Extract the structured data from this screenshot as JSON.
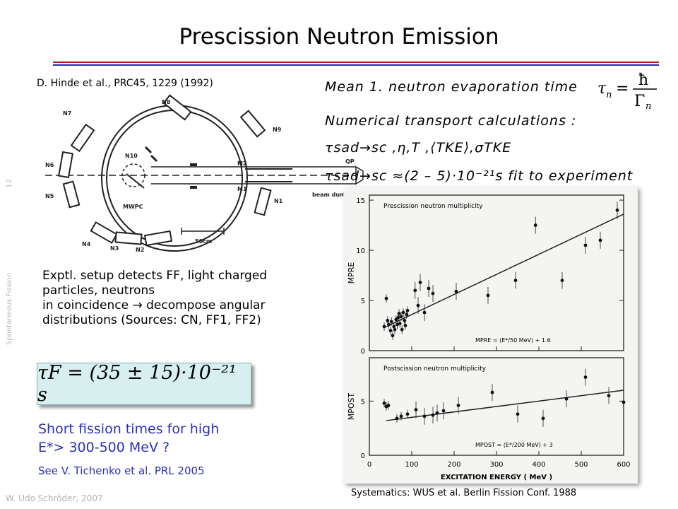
{
  "slide": {
    "title": "Prescission Neutron Emission",
    "page_number": "12",
    "side_label": "Spontaneous Fission",
    "author": "W. Udo Schröder, 2007"
  },
  "left": {
    "citation": "D. Hinde et al., PRC45, 1229 (1992)",
    "setup_labels": [
      "N8",
      "N7",
      "N9",
      "N6",
      "N10",
      "M2",
      "M1",
      "N1",
      "N5",
      "MWPC",
      "N4",
      "N3",
      "N2",
      "QP",
      "beam dump 12m",
      "50cm"
    ],
    "description": [
      "Exptl. setup detects FF, light charged",
      "particles, neutrons",
      "in coincidence → decompose angular",
      "distributions (Sources: CN, FF1, FF2)"
    ],
    "result_formula": "τF = (35 ± 15)·10⁻²¹ s",
    "question": [
      "Short fission times for high",
      "E*> 300-500 MeV ?"
    ],
    "see_also": "See V. Tichenko et al. PRL 2005"
  },
  "right": {
    "mean_label": "Mean 1. neutron evaporation time",
    "numerical_label": "Numerical transport calculations :",
    "params_line": "τsad→sc ,η,T ,⟨TKE⟩,σTKE",
    "fit_line": "τsad→sc ≈(2 – 5)·10⁻²¹s  fit to experiment",
    "caption": "Systematics: WUS et al. Berlin Fission Conf. 1988"
  },
  "chart_data": {
    "type": "scatter",
    "xlabel": "EXCITATION ENERGY ( MeV )",
    "x_ticks": [
      "0",
      "100",
      "200",
      "300",
      "400",
      "500",
      "600"
    ],
    "xlim": [
      0,
      600
    ],
    "panels": [
      {
        "title": "Prescission neutron multiplicity",
        "ylabel": "MPRE",
        "y_ticks": [
          "0",
          "5",
          "10",
          "15"
        ],
        "ylim": [
          0,
          15.5
        ],
        "fit_label": "MPRE = (E*/50 MeV) + 1.6",
        "fit": {
          "slope": 0.02,
          "intercept": 1.6
        },
        "points": [
          [
            35,
            2.4
          ],
          [
            40,
            5.2
          ],
          [
            43,
            3.0
          ],
          [
            46,
            2.6
          ],
          [
            50,
            2.0
          ],
          [
            52,
            2.9
          ],
          [
            55,
            1.5
          ],
          [
            58,
            2.4
          ],
          [
            60,
            2.1
          ],
          [
            63,
            3.1
          ],
          [
            66,
            2.6
          ],
          [
            68,
            3.3
          ],
          [
            70,
            3.7
          ],
          [
            72,
            2.7
          ],
          [
            75,
            3.4
          ],
          [
            77,
            2.1
          ],
          [
            80,
            3.8
          ],
          [
            83,
            3.0
          ],
          [
            85,
            2.5
          ],
          [
            88,
            3.6
          ],
          [
            90,
            4.0
          ],
          [
            108,
            6.0
          ],
          [
            115,
            4.5
          ],
          [
            120,
            6.8
          ],
          [
            130,
            3.8
          ],
          [
            140,
            6.2
          ],
          [
            150,
            5.7
          ],
          [
            205,
            5.9
          ],
          [
            280,
            5.5
          ],
          [
            345,
            7.0
          ],
          [
            392,
            12.5
          ],
          [
            455,
            7.0
          ],
          [
            510,
            10.5
          ],
          [
            545,
            11.0
          ],
          [
            585,
            14.0
          ]
        ]
      },
      {
        "title": "Postscission neutron multiplicity",
        "ylabel": "MPOST",
        "y_ticks": [
          "0",
          "5"
        ],
        "ylim": [
          0,
          9
        ],
        "fit_label": "MPOST = (E*/200 MeV) + 3",
        "fit": {
          "slope": 0.005,
          "intercept": 3.0
        },
        "points": [
          [
            35,
            4.8
          ],
          [
            40,
            4.5
          ],
          [
            45,
            4.6
          ],
          [
            65,
            3.4
          ],
          [
            75,
            3.6
          ],
          [
            90,
            3.8
          ],
          [
            110,
            4.2
          ],
          [
            130,
            3.6
          ],
          [
            150,
            3.7
          ],
          [
            160,
            3.9
          ],
          [
            175,
            4.1
          ],
          [
            210,
            4.6
          ],
          [
            290,
            5.8
          ],
          [
            350,
            3.8
          ],
          [
            410,
            3.4
          ],
          [
            465,
            5.2
          ],
          [
            510,
            7.2
          ],
          [
            565,
            5.5
          ],
          [
            600,
            4.9
          ]
        ]
      }
    ]
  }
}
